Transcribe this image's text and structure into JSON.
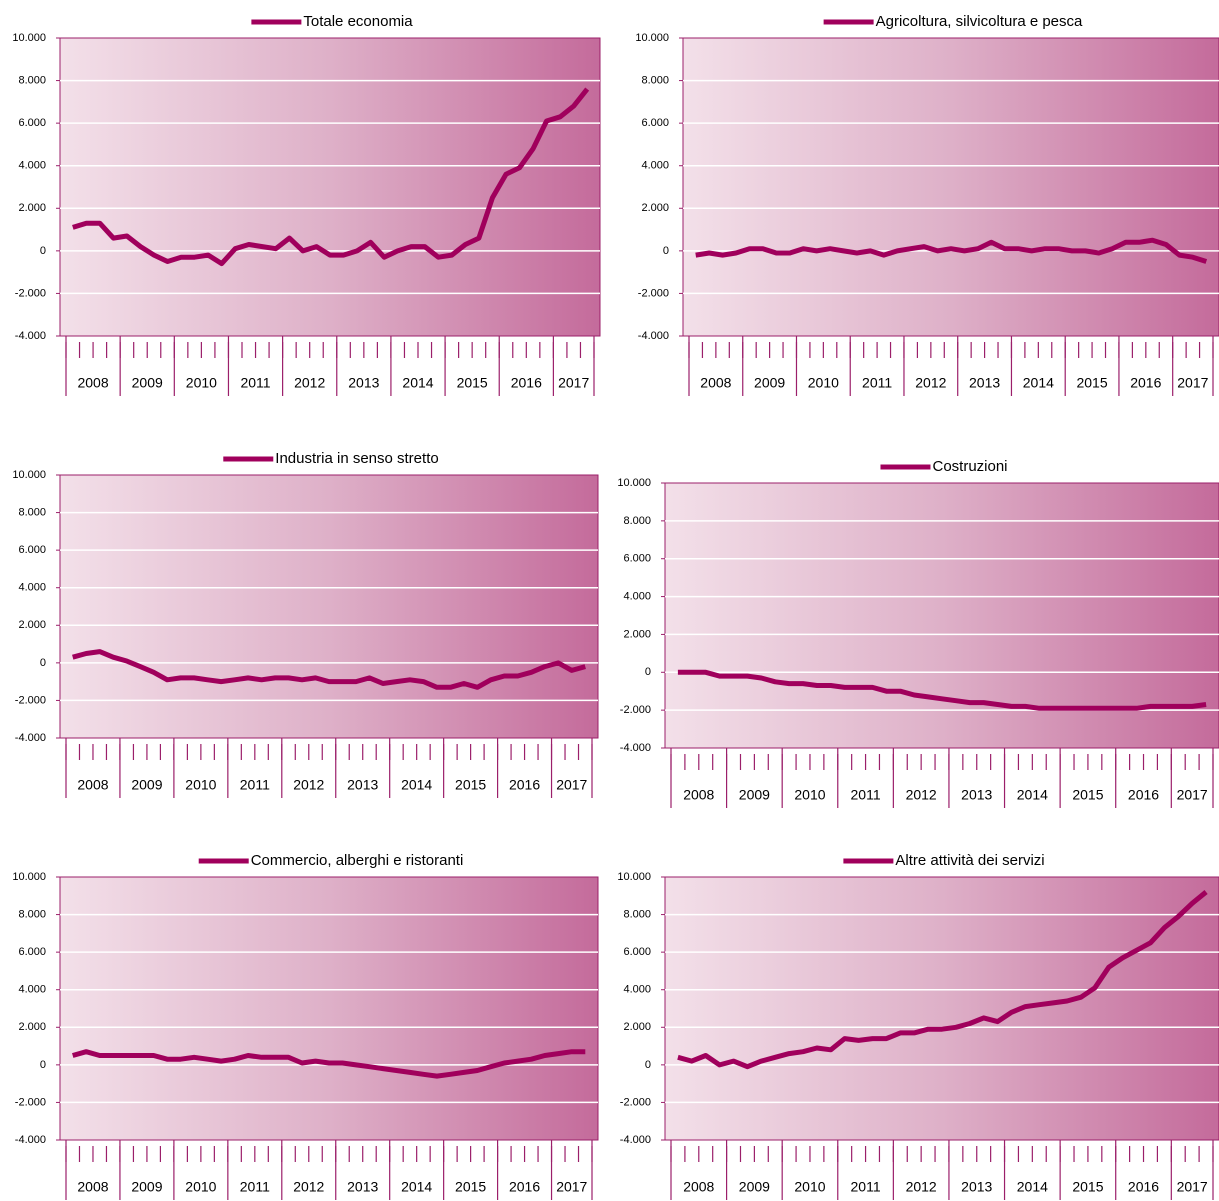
{
  "chart_data": [
    {
      "type": "line",
      "categories": [
        "2008",
        null,
        null,
        null,
        "2009",
        null,
        null,
        null,
        "2010",
        null,
        null,
        null,
        "2011",
        null,
        null,
        null,
        "2012",
        null,
        null,
        null,
        "2013",
        null,
        null,
        null,
        "2014",
        null,
        null,
        null,
        "2015",
        null,
        null,
        null,
        "2016",
        null,
        null,
        null,
        "2017",
        null,
        null
      ],
      "series": [
        {
          "name": "Totale economia",
          "color": "#a0005c",
          "values": [
            1100,
            1300,
            1300,
            600,
            700,
            200,
            -200,
            -500,
            -300,
            -300,
            -200,
            -600,
            100,
            300,
            200,
            100,
            600,
            0,
            200,
            -200,
            -200,
            0,
            400,
            -300,
            0,
            200,
            200,
            -300,
            -200,
            300,
            600,
            2500,
            3600,
            3900,
            4800,
            6100,
            6300,
            6800,
            7600
          ]
        }
      ],
      "ylim": [
        -4000,
        10000
      ],
      "yticks": [
        {
          "value": -4000,
          "label": "-4.000"
        },
        {
          "value": -2000,
          "label": "-2.000"
        },
        0,
        {
          "value": 2000,
          "label": "2.000"
        },
        {
          "value": 4000,
          "label": "4.000"
        },
        {
          "value": 6000,
          "label": "6.000"
        },
        {
          "value": 8000,
          "label": "8.000"
        },
        {
          "value": 10000,
          "label": "10.000"
        }
      ],
      "grid": true
    },
    {
      "type": "line",
      "categories": [
        "2008",
        null,
        null,
        null,
        "2009",
        null,
        null,
        null,
        "2010",
        null,
        null,
        null,
        "2011",
        null,
        null,
        null,
        "2012",
        null,
        null,
        null,
        "2013",
        null,
        null,
        null,
        "2014",
        null,
        null,
        null,
        "2015",
        null,
        null,
        null,
        "2016",
        null,
        null,
        null,
        "2017",
        null,
        null
      ],
      "series": [
        {
          "name": "Agricoltura, silvicoltura e pesca",
          "color": "#a0005c",
          "values": [
            -200,
            -100,
            -200,
            -100,
            100,
            100,
            -100,
            -100,
            100,
            0,
            100,
            0,
            -100,
            0,
            -200,
            0,
            100,
            200,
            0,
            100,
            0,
            100,
            400,
            100,
            100,
            0,
            100,
            100,
            0,
            0,
            -100,
            100,
            400,
            400,
            500,
            300,
            -200,
            -300,
            -500
          ]
        }
      ],
      "ylim": [
        -4000,
        10000
      ],
      "yticks": [
        {
          "value": -4000,
          "label": "-4.000"
        },
        {
          "value": -2000,
          "label": "-2.000"
        },
        0,
        {
          "value": 2000,
          "label": "2.000"
        },
        {
          "value": 4000,
          "label": "4.000"
        },
        {
          "value": 6000,
          "label": "6.000"
        },
        {
          "value": 8000,
          "label": "8.000"
        },
        {
          "value": 10000,
          "label": "10.000"
        }
      ],
      "grid": true
    },
    {
      "type": "line",
      "categories": [
        "2008",
        null,
        null,
        null,
        "2009",
        null,
        null,
        null,
        "2010",
        null,
        null,
        null,
        "2011",
        null,
        null,
        null,
        "2012",
        null,
        null,
        null,
        "2013",
        null,
        null,
        null,
        "2014",
        null,
        null,
        null,
        "2015",
        null,
        null,
        null,
        "2016",
        null,
        null,
        null,
        "2017",
        null,
        null
      ],
      "series": [
        {
          "name": "Industria in senso stretto",
          "color": "#a0005c",
          "values": [
            300,
            500,
            600,
            300,
            100,
            -200,
            -500,
            -900,
            -800,
            -800,
            -900,
            -1000,
            -900,
            -800,
            -900,
            -800,
            -800,
            -900,
            -800,
            -1000,
            -1000,
            -1000,
            -800,
            -1100,
            -1000,
            -900,
            -1000,
            -1300,
            -1300,
            -1100,
            -1300,
            -900,
            -700,
            -700,
            -500,
            -200,
            0,
            -400,
            -200
          ]
        }
      ],
      "ylim": [
        -4000,
        10000
      ],
      "yticks": [
        {
          "value": -4000,
          "label": "-4.000"
        },
        {
          "value": -2000,
          "label": "-2.000"
        },
        0,
        {
          "value": 2000,
          "label": "2.000"
        },
        {
          "value": 4000,
          "label": "4.000"
        },
        {
          "value": 6000,
          "label": "6.000"
        },
        {
          "value": 8000,
          "label": "8.000"
        },
        {
          "value": 10000,
          "label": "10.000"
        }
      ],
      "grid": true
    },
    {
      "type": "line",
      "categories": [
        "2008",
        null,
        null,
        null,
        "2009",
        null,
        null,
        null,
        "2010",
        null,
        null,
        null,
        "2011",
        null,
        null,
        null,
        "2012",
        null,
        null,
        null,
        "2013",
        null,
        null,
        null,
        "2014",
        null,
        null,
        null,
        "2015",
        null,
        null,
        null,
        "2016",
        null,
        null,
        null,
        "2017",
        null,
        null
      ],
      "series": [
        {
          "name": "Costruzioni",
          "color": "#a0005c",
          "values": [
            0,
            0,
            0,
            -200,
            -200,
            -200,
            -300,
            -500,
            -600,
            -600,
            -700,
            -700,
            -800,
            -800,
            -800,
            -1000,
            -1000,
            -1200,
            -1300,
            -1400,
            -1500,
            -1600,
            -1600,
            -1700,
            -1800,
            -1800,
            -1900,
            -1900,
            -1900,
            -1900,
            -1900,
            -1900,
            -1900,
            -1900,
            -1800,
            -1800,
            -1800,
            -1800,
            -1700
          ]
        }
      ],
      "ylim": [
        -4000,
        10000
      ],
      "yticks": [
        {
          "value": -4000,
          "label": "-4.000"
        },
        {
          "value": -2000,
          "label": "-2.000"
        },
        0,
        {
          "value": 2000,
          "label": "2.000"
        },
        {
          "value": 4000,
          "label": "4.000"
        },
        {
          "value": 6000,
          "label": "6.000"
        },
        {
          "value": 8000,
          "label": "8.000"
        },
        {
          "value": 10000,
          "label": "10.000"
        }
      ],
      "grid": true
    },
    {
      "type": "line",
      "categories": [
        "2008",
        null,
        null,
        null,
        "2009",
        null,
        null,
        null,
        "2010",
        null,
        null,
        null,
        "2011",
        null,
        null,
        null,
        "2012",
        null,
        null,
        null,
        "2013",
        null,
        null,
        null,
        "2014",
        null,
        null,
        null,
        "2015",
        null,
        null,
        null,
        "2016",
        null,
        null,
        null,
        "2017",
        null,
        null
      ],
      "series": [
        {
          "name": "Commercio, alberghi e ristoranti",
          "color": "#a0005c",
          "values": [
            500,
            700,
            500,
            500,
            500,
            500,
            500,
            300,
            300,
            400,
            300,
            200,
            300,
            500,
            400,
            400,
            400,
            100,
            200,
            100,
            100,
            0,
            -100,
            -200,
            -300,
            -400,
            -500,
            -600,
            -500,
            -400,
            -300,
            -100,
            100,
            200,
            300,
            500,
            600,
            700,
            700
          ]
        }
      ],
      "ylim": [
        -4000,
        10000
      ],
      "yticks": [
        {
          "value": -4000,
          "label": "-4.000"
        },
        {
          "value": -2000,
          "label": "-2.000"
        },
        0,
        {
          "value": 2000,
          "label": "2.000"
        },
        {
          "value": 4000,
          "label": "4.000"
        },
        {
          "value": 6000,
          "label": "6.000"
        },
        {
          "value": 8000,
          "label": "8.000"
        },
        {
          "value": 10000,
          "label": "10.000"
        }
      ],
      "grid": true
    },
    {
      "type": "line",
      "categories": [
        "2008",
        null,
        null,
        null,
        "2009",
        null,
        null,
        null,
        "2010",
        null,
        null,
        null,
        "2011",
        null,
        null,
        null,
        "2012",
        null,
        null,
        null,
        "2013",
        null,
        null,
        null,
        "2014",
        null,
        null,
        null,
        "2015",
        null,
        null,
        null,
        "2016",
        null,
        null,
        null,
        "2017",
        null,
        null
      ],
      "series": [
        {
          "name": "Altre attività dei servizi",
          "color": "#a0005c",
          "values": [
            400,
            200,
            500,
            0,
            200,
            -100,
            200,
            400,
            600,
            700,
            900,
            800,
            1400,
            1300,
            1400,
            1400,
            1700,
            1700,
            1900,
            1900,
            2000,
            2200,
            2500,
            2300,
            2800,
            3100,
            3200,
            3300,
            3400,
            3600,
            4100,
            5200,
            5700,
            6100,
            6500,
            7300,
            7900,
            8600,
            9200
          ]
        }
      ],
      "ylim": [
        -4000,
        10000
      ],
      "yticks": [
        {
          "value": -4000,
          "label": "-4.000"
        },
        {
          "value": -2000,
          "label": "-2.000"
        },
        0,
        {
          "value": 2000,
          "label": "2.000"
        },
        {
          "value": 4000,
          "label": "4.000"
        },
        {
          "value": 6000,
          "label": "6.000"
        },
        {
          "value": 8000,
          "label": "8.000"
        },
        {
          "value": 10000,
          "label": "10.000"
        }
      ],
      "grid": true
    }
  ]
}
